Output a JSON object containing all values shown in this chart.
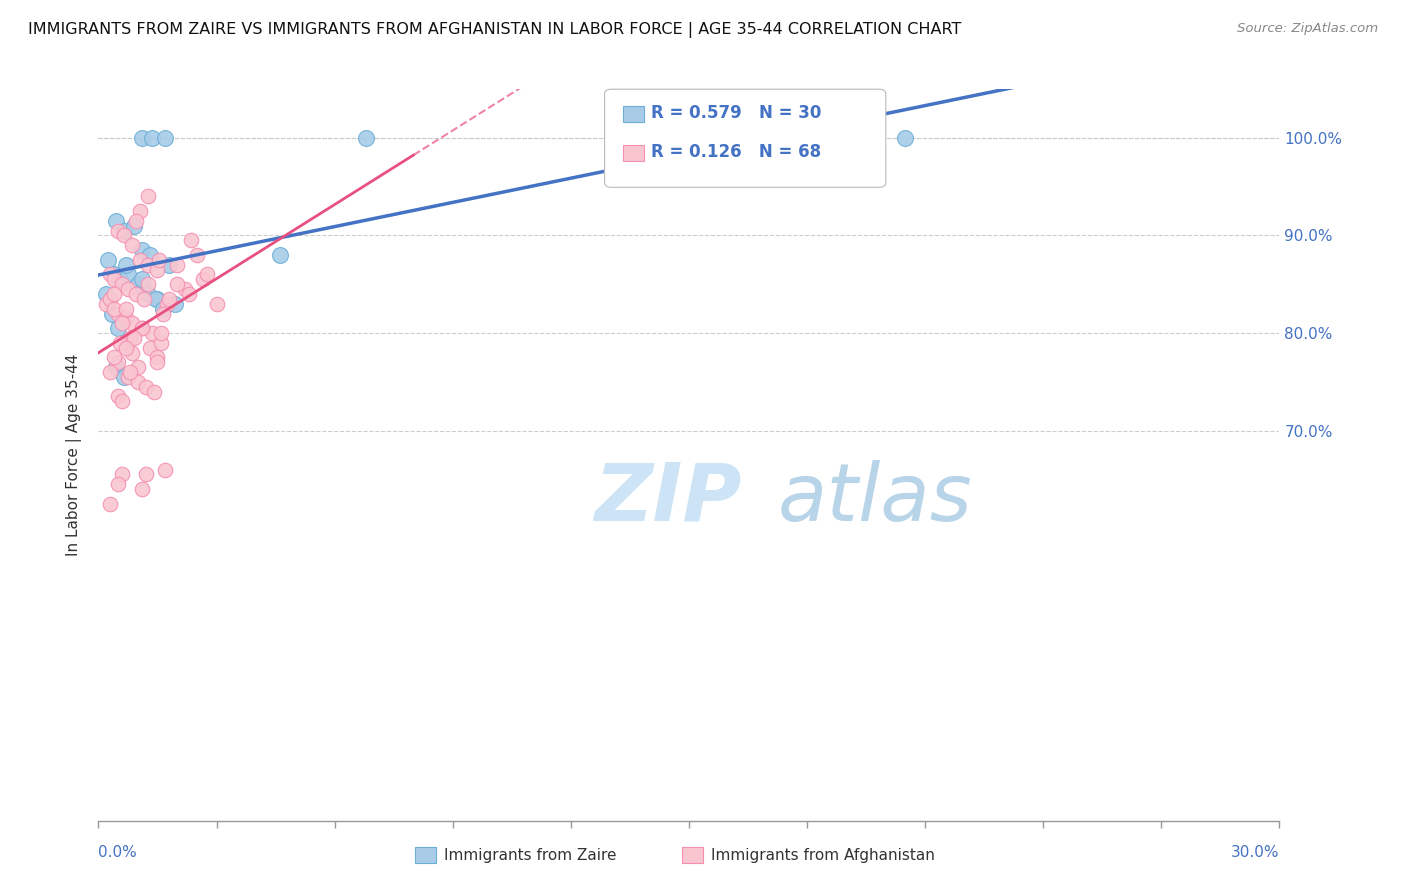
{
  "title": "IMMIGRANTS FROM ZAIRE VS IMMIGRANTS FROM AFGHANISTAN IN LABOR FORCE | AGE 35-44 CORRELATION CHART",
  "source": "Source: ZipAtlas.com",
  "ylabel": "In Labor Force | Age 35-44",
  "xlim": [
    0.0,
    30.0
  ],
  "ylim": [
    30.0,
    105.0
  ],
  "ytick_positions": [
    70.0,
    80.0,
    90.0,
    100.0
  ],
  "ytick_labels": [
    "70.0%",
    "80.0%",
    "90.0%",
    "100.0%"
  ],
  "legend_R_zaire": "0.579",
  "legend_N_zaire": "30",
  "legend_R_afghan": "0.126",
  "legend_N_afghan": "68",
  "color_zaire_fill": "#a8cce8",
  "color_zaire_edge": "#6aaed6",
  "color_afghan_fill": "#f9c6d0",
  "color_afghan_edge": "#f48fb1",
  "color_zaire_line": "#4472c4",
  "color_afghan_line": "#e85080",
  "color_text_blue": "#4472c4",
  "color_legend_text": "#4472c4",
  "color_grid": "#cccccc",
  "color_watermark": "#cce4f5",
  "background_color": "#ffffff",
  "watermark_zip": "ZIP",
  "watermark_atlas": "atlas",
  "zaire_x": [
    1.1,
    1.35,
    1.7,
    0.45,
    0.65,
    0.9,
    1.1,
    1.3,
    0.25,
    0.4,
    0.55,
    0.75,
    1.0,
    1.15,
    1.5,
    1.95,
    4.6,
    0.2,
    0.35,
    0.5,
    0.7,
    1.1,
    6.8,
    1.8,
    0.45,
    0.65,
    20.5,
    1.25,
    1.45,
    1.65
  ],
  "zaire_y": [
    100.0,
    100.0,
    100.0,
    91.5,
    90.5,
    91.0,
    88.5,
    88.0,
    87.5,
    86.0,
    85.5,
    86.0,
    85.0,
    84.5,
    83.5,
    83.0,
    88.0,
    84.0,
    82.0,
    80.5,
    87.0,
    85.5,
    100.0,
    87.0,
    76.5,
    75.5,
    100.0,
    84.0,
    83.5,
    82.5
  ],
  "afghan_x": [
    1.25,
    1.05,
    0.95,
    2.35,
    0.5,
    0.65,
    0.85,
    1.05,
    1.25,
    1.5,
    0.3,
    0.4,
    0.6,
    0.75,
    0.95,
    1.15,
    1.55,
    2.0,
    0.2,
    0.3,
    0.5,
    0.7,
    0.85,
    1.1,
    1.75,
    0.4,
    0.6,
    2.5,
    1.65,
    2.2,
    1.35,
    0.8,
    0.55,
    1.3,
    2.65,
    1.5,
    1.8,
    0.5,
    3.0,
    2.0,
    0.85,
    0.7,
    1.1,
    0.4,
    2.75,
    1.6,
    0.3,
    0.75,
    1.0,
    1.2,
    1.4,
    1.6,
    0.5,
    0.9,
    0.6,
    1.25,
    0.7,
    2.3,
    1.5,
    1.0,
    0.4,
    0.8,
    0.6,
    1.1,
    0.5,
    0.3,
    1.7,
    1.2
  ],
  "afghan_y": [
    94.0,
    92.5,
    91.5,
    89.5,
    90.5,
    90.0,
    89.0,
    87.5,
    87.0,
    86.5,
    86.0,
    85.5,
    85.0,
    84.5,
    84.0,
    83.5,
    87.5,
    87.0,
    83.0,
    83.5,
    82.0,
    81.5,
    81.0,
    80.5,
    83.0,
    82.5,
    81.0,
    88.0,
    82.0,
    84.5,
    80.0,
    79.5,
    79.0,
    78.5,
    85.5,
    77.5,
    83.5,
    77.0,
    83.0,
    85.0,
    78.0,
    82.5,
    80.5,
    84.0,
    86.0,
    79.0,
    76.0,
    75.5,
    75.0,
    74.5,
    74.0,
    80.0,
    73.5,
    79.5,
    73.0,
    85.0,
    78.5,
    84.0,
    77.0,
    76.5,
    77.5,
    76.0,
    65.5,
    64.0,
    64.5,
    62.5,
    66.0,
    65.5
  ],
  "dotted_top_line_y": 100.0,
  "dashed_afghan_end_x": 30.0
}
